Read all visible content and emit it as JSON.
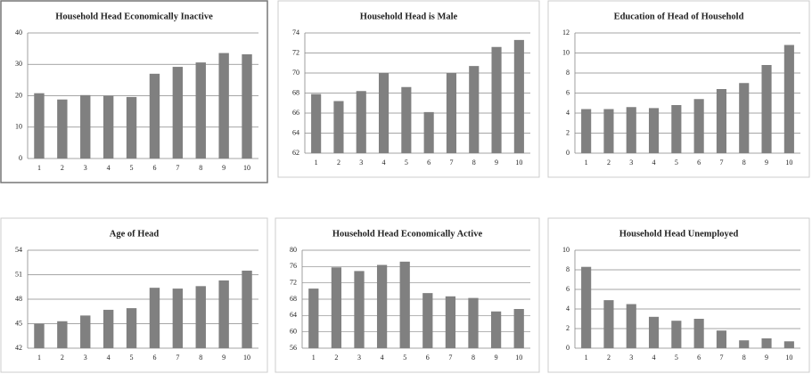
{
  "chart_data": [
    {
      "type": "bar",
      "title": "Household Head Economically Inactive",
      "categories": [
        "1",
        "2",
        "3",
        "4",
        "5",
        "6",
        "7",
        "8",
        "9",
        "10"
      ],
      "values": [
        20.8,
        18.8,
        20.2,
        20.0,
        19.6,
        27.0,
        29.2,
        30.6,
        33.6,
        33.2
      ],
      "color": "#808080",
      "ylim": [
        0,
        40
      ],
      "yticks": [
        0,
        10,
        20,
        30,
        40
      ],
      "grid": true
    },
    {
      "type": "bar",
      "title": "Household Head is Male",
      "categories": [
        "1",
        "2",
        "3",
        "4",
        "5",
        "6",
        "7",
        "8",
        "9",
        "10"
      ],
      "values": [
        67.9,
        67.2,
        68.2,
        70.0,
        68.6,
        66.1,
        70.0,
        70.7,
        72.6,
        73.3
      ],
      "color": "#808080",
      "ylim": [
        62,
        74
      ],
      "yticks": [
        62,
        64,
        66,
        68,
        70,
        72,
        74
      ],
      "grid": true
    },
    {
      "type": "bar",
      "title": "Education of Head of Household",
      "categories": [
        "1",
        "2",
        "3",
        "4",
        "5",
        "6",
        "7",
        "8",
        "9",
        "10"
      ],
      "values": [
        4.4,
        4.4,
        4.6,
        4.5,
        4.8,
        5.4,
        6.4,
        7.0,
        8.8,
        10.8
      ],
      "color": "#808080",
      "ylim": [
        0,
        12
      ],
      "yticks": [
        0,
        2,
        4,
        6,
        8,
        10,
        12
      ],
      "grid": true
    },
    {
      "type": "bar",
      "title": "Age of Head",
      "categories": [
        "1",
        "2",
        "3",
        "4",
        "5",
        "6",
        "7",
        "8",
        "9",
        "10"
      ],
      "values": [
        45.0,
        45.3,
        46.0,
        46.7,
        46.9,
        49.4,
        49.3,
        49.6,
        50.3,
        51.5
      ],
      "color": "#808080",
      "ylim": [
        42,
        54
      ],
      "yticks": [
        42,
        45,
        48,
        51,
        54
      ],
      "grid": true
    },
    {
      "type": "bar",
      "title": "Household Head Economically Active",
      "categories": [
        "1",
        "2",
        "3",
        "4",
        "5",
        "6",
        "7",
        "8",
        "9",
        "10"
      ],
      "values": [
        70.6,
        75.8,
        74.9,
        76.4,
        77.2,
        69.5,
        68.7,
        68.3,
        65.0,
        65.6
      ],
      "color": "#808080",
      "ylim": [
        56,
        80
      ],
      "yticks": [
        56,
        60,
        64,
        68,
        72,
        76,
        80
      ],
      "grid": true
    },
    {
      "type": "bar",
      "title": "Household Head Unemployed",
      "categories": [
        "1",
        "2",
        "3",
        "4",
        "5",
        "6",
        "7",
        "8",
        "9",
        "10"
      ],
      "values": [
        8.3,
        4.9,
        4.5,
        3.2,
        2.8,
        3.0,
        1.8,
        0.8,
        1.0,
        0.7
      ],
      "color": "#808080",
      "ylim": [
        0,
        10
      ],
      "yticks": [
        0,
        2,
        4,
        6,
        8,
        10
      ],
      "grid": true
    }
  ]
}
